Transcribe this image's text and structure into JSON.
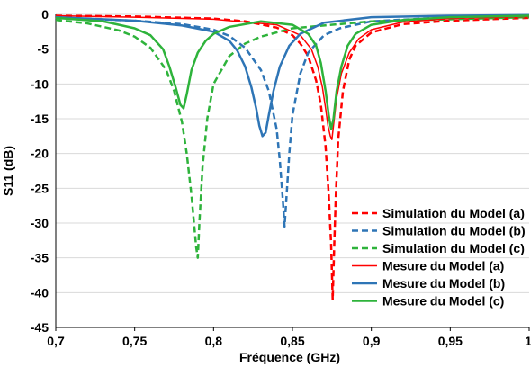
{
  "chart_data": {
    "type": "line",
    "title": "",
    "xlabel": "Fréquence (GHz)",
    "ylabel": "S11 (dB)",
    "xlim": [
      0.7,
      1.0
    ],
    "ylim": [
      -45,
      0
    ],
    "xticks": [
      "0,7",
      "0,75",
      "0,8",
      "0,85",
      "0,9",
      "0,95",
      "1"
    ],
    "yticks": [
      "0",
      "-5",
      "-10",
      "-15",
      "-20",
      "-25",
      "-30",
      "-35",
      "-40",
      "-45"
    ],
    "grid": "horizontal",
    "legend_position": "bottom-right",
    "series": [
      {
        "name": "Simulation du Model (a)",
        "color": "#ff0000",
        "style": "dashed",
        "width": 2.5,
        "x": [
          0.7,
          0.75,
          0.8,
          0.82,
          0.84,
          0.85,
          0.855,
          0.86,
          0.865,
          0.868,
          0.871,
          0.873,
          0.8745,
          0.8755,
          0.8765,
          0.8775,
          0.879,
          0.882,
          0.886,
          0.89,
          0.9,
          0.92,
          0.95,
          1.0
        ],
        "y": [
          -0.2,
          -0.3,
          -0.6,
          -1.0,
          -1.9,
          -3.0,
          -4.2,
          -6.0,
          -9.5,
          -13.0,
          -19.0,
          -26.0,
          -33.0,
          -41.0,
          -33.0,
          -26.0,
          -18.0,
          -11.0,
          -6.5,
          -4.5,
          -2.6,
          -1.4,
          -0.9,
          -0.5
        ]
      },
      {
        "name": "Simulation du Model (b)",
        "color": "#2e75b6",
        "style": "dashed",
        "width": 2.5,
        "x": [
          0.7,
          0.75,
          0.78,
          0.8,
          0.81,
          0.82,
          0.83,
          0.835,
          0.84,
          0.842,
          0.844,
          0.845,
          0.846,
          0.848,
          0.85,
          0.855,
          0.86,
          0.87,
          0.88,
          0.9,
          0.95,
          1.0
        ],
        "y": [
          -0.5,
          -0.9,
          -1.4,
          -2.2,
          -3.1,
          -4.8,
          -8.0,
          -11.0,
          -16.5,
          -21.0,
          -27.0,
          -30.5,
          -27.0,
          -20.0,
          -14.5,
          -8.5,
          -5.5,
          -3.0,
          -2.0,
          -1.0,
          -0.4,
          -0.2
        ]
      },
      {
        "name": "Simulation du Model (c)",
        "color": "#2eb33b",
        "style": "dashed",
        "width": 2.5,
        "x": [
          0.7,
          0.72,
          0.74,
          0.75,
          0.76,
          0.77,
          0.775,
          0.78,
          0.783,
          0.786,
          0.788,
          0.789,
          0.79,
          0.791,
          0.793,
          0.796,
          0.8,
          0.81,
          0.82,
          0.83,
          0.85,
          0.9,
          1.0
        ],
        "y": [
          -0.8,
          -1.3,
          -2.3,
          -3.2,
          -4.8,
          -8.0,
          -11.0,
          -15.5,
          -20.0,
          -26.0,
          -31.0,
          -33.5,
          -35.0,
          -30.0,
          -22.0,
          -15.0,
          -10.0,
          -6.0,
          -4.2,
          -3.2,
          -2.0,
          -1.0,
          -0.4
        ]
      },
      {
        "name": "Mesure du Model (a)",
        "color": "#ff0000",
        "style": "solid",
        "width": 1.5,
        "x": [
          0.7,
          0.75,
          0.8,
          0.84,
          0.855,
          0.862,
          0.866,
          0.869,
          0.871,
          0.8725,
          0.874,
          0.875,
          0.876,
          0.878,
          0.881,
          0.886,
          0.892,
          0.9,
          0.92,
          0.95,
          1.0
        ],
        "y": [
          -0.2,
          -0.4,
          -0.7,
          -1.5,
          -3.0,
          -5.0,
          -7.5,
          -10.5,
          -13.5,
          -16.0,
          -17.5,
          -18.0,
          -16.0,
          -12.0,
          -8.5,
          -5.5,
          -3.5,
          -2.2,
          -1.1,
          -0.6,
          -0.3
        ]
      },
      {
        "name": "Mesure du Model (b)",
        "color": "#2e75b6",
        "style": "solid",
        "width": 2.5,
        "x": [
          0.7,
          0.75,
          0.78,
          0.8,
          0.81,
          0.815,
          0.82,
          0.824,
          0.827,
          0.829,
          0.831,
          0.833,
          0.835,
          0.838,
          0.842,
          0.848,
          0.855,
          0.87,
          0.9,
          0.95,
          1.0
        ],
        "y": [
          -0.4,
          -0.9,
          -1.6,
          -2.5,
          -3.8,
          -5.2,
          -7.5,
          -10.5,
          -13.5,
          -16.0,
          -17.5,
          -17.0,
          -14.5,
          -11.0,
          -7.5,
          -4.5,
          -2.8,
          -1.2,
          -0.4,
          -0.2,
          -0.1
        ]
      },
      {
        "name": "Mesure du Model (c)",
        "color": "#2eb33b",
        "style": "solid",
        "width": 2.5,
        "x": [
          0.7,
          0.73,
          0.75,
          0.76,
          0.768,
          0.772,
          0.776,
          0.779,
          0.781,
          0.783,
          0.786,
          0.79,
          0.795,
          0.8,
          0.81,
          0.83,
          0.85,
          0.86,
          0.865,
          0.868,
          0.871,
          0.873,
          0.8745,
          0.876,
          0.878,
          0.881,
          0.885,
          0.89,
          0.9,
          0.92,
          0.95,
          1.0
        ],
        "y": [
          -0.5,
          -1.0,
          -2.0,
          -3.0,
          -5.0,
          -7.5,
          -10.5,
          -13.0,
          -13.5,
          -11.5,
          -8.0,
          -5.5,
          -3.8,
          -2.8,
          -1.8,
          -1.0,
          -1.5,
          -2.8,
          -4.5,
          -7.0,
          -11.0,
          -14.5,
          -16.5,
          -15.0,
          -11.0,
          -7.5,
          -4.5,
          -2.8,
          -1.5,
          -0.8,
          -0.4,
          -0.2
        ]
      }
    ]
  }
}
